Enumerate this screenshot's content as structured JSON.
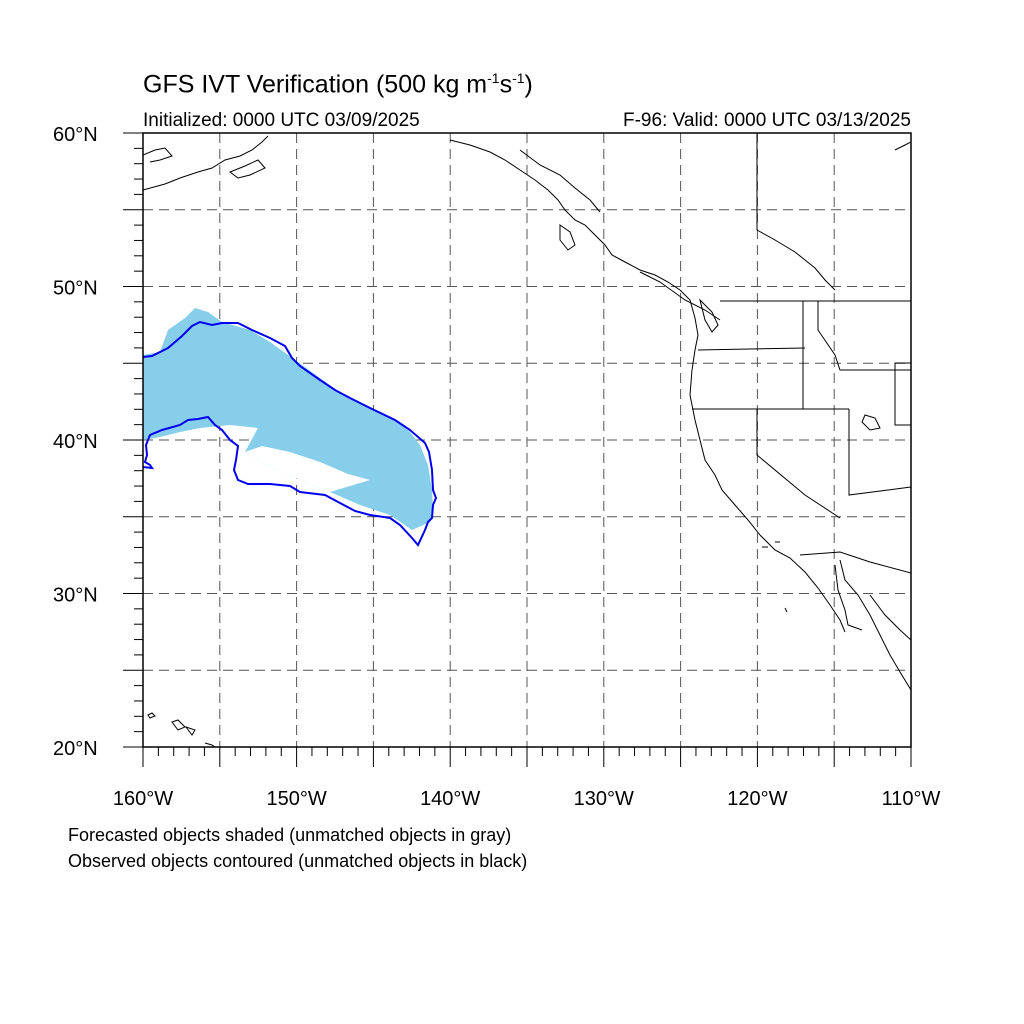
{
  "title": {
    "main": "GFS IVT Verification (500 kg m",
    "exp1": "-1",
    "mid": "s",
    "exp2": "-1",
    "close": ")"
  },
  "initialized": "Initialized: 0000 UTC 03/09/2025",
  "valid": "F-96: Valid: 0000 UTC 03/13/2025",
  "map": {
    "lon_range": [
      -160,
      -110
    ],
    "lat_range": [
      20,
      60
    ],
    "lon_ticks": [
      "160°W",
      "150°W",
      "140°W",
      "130°W",
      "120°W",
      "110°W"
    ],
    "lat_ticks": [
      "60°N",
      "50°N",
      "40°N",
      "30°N",
      "20°N"
    ],
    "grid": "dashed every 5°",
    "forecast_fill_color": "#87ceeb",
    "observed_contour_color": "#0000ee"
  },
  "notes": {
    "forecast": "Forecasted objects shaded (unmatched objects in gray)",
    "observed": "Observed objects contoured (unmatched objects in black)"
  }
}
